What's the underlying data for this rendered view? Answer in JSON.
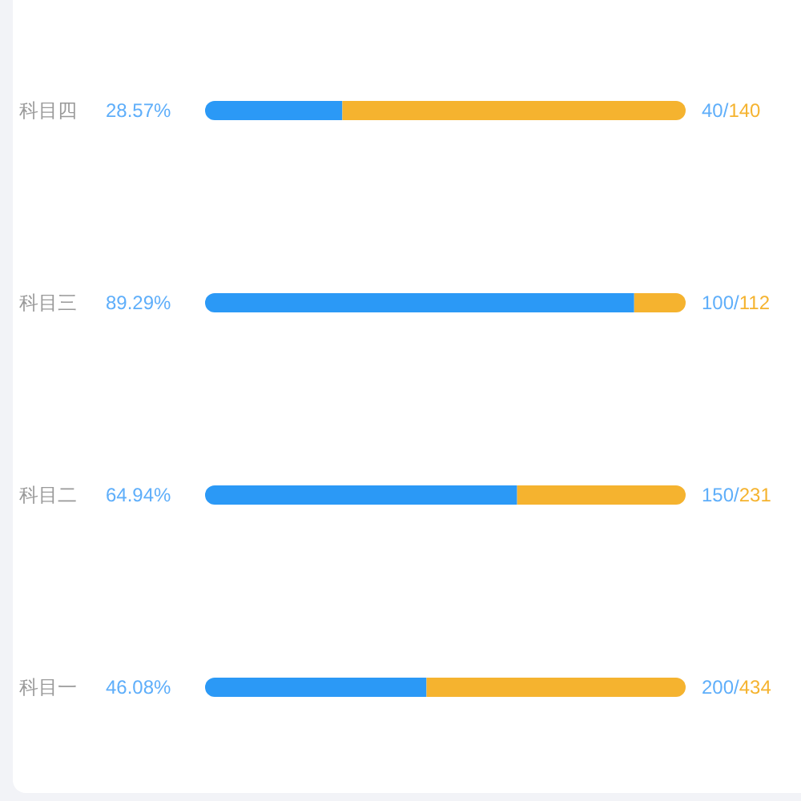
{
  "chart_data": {
    "type": "bar",
    "orientation": "horizontal",
    "stacked": true,
    "tick_labels": "y",
    "categories": [
      "科目四",
      "科目三",
      "科目二",
      "科目一"
    ],
    "xlim": [
      0,
      100
    ],
    "series": [
      {
        "color": "#2b99f6",
        "values": [
          28.57,
          89.29,
          64.94,
          46.08
        ],
        "value_labels": [
          "28.57%",
          "89.29%",
          "64.94%",
          "46.08%"
        ]
      },
      {
        "color": "#f5b32f",
        "values": [
          71.43,
          10.71,
          35.06,
          53.92
        ]
      }
    ],
    "annotations": [
      "40/140",
      "100/112",
      "150/231",
      "200/434"
    ]
  }
}
